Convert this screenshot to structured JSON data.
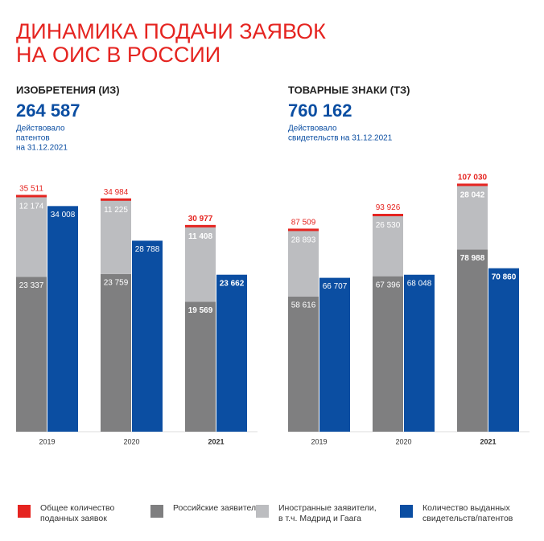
{
  "title": [
    "ДИНАМИКА ПОДАЧИ ЗАЯВОК",
    "НА ОИС В РОССИИ"
  ],
  "chart_data": [
    {
      "type": "bar",
      "title": "ИЗОБРЕТЕНИЯ (ИЗ)",
      "total": {
        "value": 264587,
        "label": "264 587"
      },
      "caption": [
        "Действовало",
        "патентов",
        "на 31.12.2021"
      ],
      "categories": [
        "2019",
        "2020",
        "2021"
      ],
      "ylim": [
        0,
        37200
      ],
      "series": [
        {
          "name": "Общее количество поданных заявок",
          "color": "#e52420",
          "values": [
            35511,
            34984,
            30977
          ],
          "value_labels": [
            "35 511",
            "34 984",
            "30 977"
          ]
        },
        {
          "name": "Российские заявители",
          "color": "#7f7f80",
          "values": [
            23337,
            23759,
            19569
          ],
          "value_labels": [
            "23 337",
            "23 759",
            "19 569"
          ]
        },
        {
          "name": "Иностранные заявители, в т.ч. Мадрид и Гаага",
          "color": "#bcbdc0",
          "values": [
            12174,
            11225,
            11408
          ],
          "value_labels": [
            "12 174",
            "11 225",
            "11 408"
          ]
        },
        {
          "name": "Количество выданных свидетельств/патентов",
          "color": "#0b4ea2",
          "values": [
            34008,
            28788,
            23662
          ],
          "value_labels": [
            "34 008",
            "28 788",
            "23 662"
          ]
        }
      ]
    },
    {
      "type": "bar",
      "title": "ТОВАРНЫЕ ЗНАКИ (ТЗ)",
      "total": {
        "value": 760162,
        "label": "760 162"
      },
      "caption": [
        "Действовало",
        "свидетельств на 31.12.2021"
      ],
      "categories": [
        "2019",
        "2020",
        "2021"
      ],
      "ylim": [
        0,
        107000
      ],
      "series": [
        {
          "name": "Общее количество поданных заявок",
          "color": "#e52420",
          "values": [
            87509,
            93926,
            107030
          ],
          "value_labels": [
            "87 509",
            "93 926",
            "107 030"
          ]
        },
        {
          "name": "Российские заявители",
          "color": "#7f7f80",
          "values": [
            58616,
            67396,
            78988
          ],
          "value_labels": [
            "58 616",
            "67 396",
            "78 988"
          ]
        },
        {
          "name": "Иностранные заявители, в т.ч. Мадрид и Гаага",
          "color": "#bcbdc0",
          "values": [
            28893,
            26530,
            28042
          ],
          "value_labels": [
            "28 893",
            "26 530",
            "28 042"
          ]
        },
        {
          "name": "Количество выданных свидетельств/патентов",
          "color": "#0b4ea2",
          "values": [
            66707,
            68048,
            70860
          ],
          "value_labels": [
            "66 707",
            "68 048",
            "70 860"
          ]
        }
      ]
    }
  ]
}
